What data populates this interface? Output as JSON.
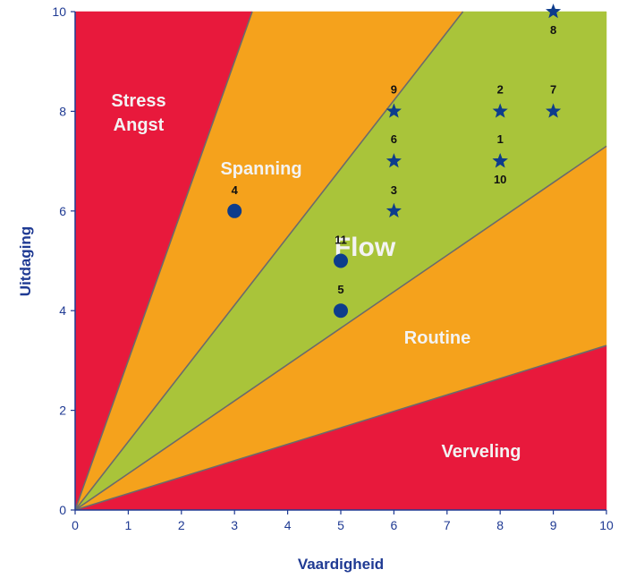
{
  "chart_data": {
    "type": "scatter",
    "xlabel": "Vaardigheid",
    "ylabel": "Uitdaging",
    "xlim": [
      0,
      10
    ],
    "ylim": [
      0,
      10
    ],
    "x_ticks": [
      "0",
      "1",
      "2",
      "3",
      "4",
      "5",
      "6",
      "7",
      "8",
      "9",
      "10"
    ],
    "y_ticks": [
      "0",
      "2",
      "4",
      "6",
      "8",
      "10"
    ],
    "grid": false,
    "zones": [
      {
        "id": "stress",
        "lines": [
          "Stress",
          "Angst"
        ],
        "color": "#e8193c"
      },
      {
        "id": "spanning",
        "lines": [
          "Spanning"
        ],
        "color": "#f5a21c"
      },
      {
        "id": "flow",
        "lines": [
          "Flow"
        ],
        "color": "#a9c43a"
      },
      {
        "id": "routine",
        "lines": [
          "Routine"
        ],
        "color": "#f5a21c"
      },
      {
        "id": "verveling",
        "lines": [
          "Verveling"
        ],
        "color": "#e8193c"
      }
    ],
    "zone_boundary_slopes": [
      3.0,
      1.37,
      0.73,
      0.33
    ],
    "points": [
      {
        "label": "1",
        "x": 8,
        "y": 7,
        "marker": "star"
      },
      {
        "label": "2",
        "x": 8,
        "y": 8,
        "marker": "star"
      },
      {
        "label": "3",
        "x": 6,
        "y": 6,
        "marker": "star"
      },
      {
        "label": "4",
        "x": 3,
        "y": 6,
        "marker": "circle"
      },
      {
        "label": "5",
        "x": 5,
        "y": 4,
        "marker": "circle"
      },
      {
        "label": "6",
        "x": 6,
        "y": 7,
        "marker": "star"
      },
      {
        "label": "7",
        "x": 9,
        "y": 8,
        "marker": "star"
      },
      {
        "label": "8",
        "x": 9,
        "y": 10,
        "marker": "star"
      },
      {
        "label": "9",
        "x": 6,
        "y": 8,
        "marker": "star"
      },
      {
        "label": "10",
        "x": 8,
        "y": 7,
        "marker": "star"
      },
      {
        "label": "11",
        "x": 5,
        "y": 5,
        "marker": "circle"
      }
    ],
    "marker_color": "#0d3c8c",
    "axis_color": "#1f3a93",
    "boundary_color": "#6b6b6b"
  }
}
